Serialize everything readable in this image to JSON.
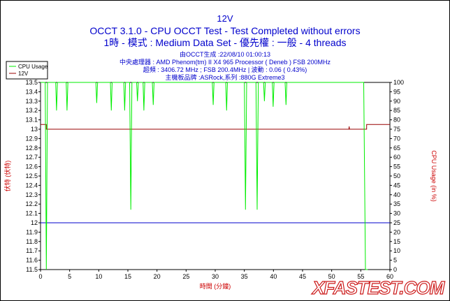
{
  "header": {
    "title": "12V",
    "subtitle": "OCCT 3.1.0 - CPU OCCT Test - Test Completed without errors",
    "config": "1時 - 模式 : Medium Data Set - 優先權 : 一般 - 4 threads"
  },
  "info": {
    "line1": "由OCCT生成 :22/08/10 01:00:13",
    "line2": "中央處理器 : AMD Phenom(tm) II X4 965 Processor ( Deneb ) FSB 200MHz",
    "line3": "超頻 : 3406.72 MHz ; FSB 200.4MHz | 波動 : 0.06 ( 0.43%)",
    "line4": "主機板品牌 :ASRock,系列 :880G Extreme3"
  },
  "legend": {
    "cpu": "CPU Usage",
    "v12": "12V"
  },
  "watermark": "XFASTEST.COM",
  "colors": {
    "cpu": "#00ee00",
    "v12": "#990000",
    "threshold": "#0000cc",
    "text": "#0000cc",
    "axis_label": "#cc0000"
  },
  "chart_data": {
    "type": "line",
    "xlabel": "時間 (分鐘)",
    "ylabel_left": "伏特 (伏特)",
    "ylabel_right": "CPU Usage (in %)",
    "xlim": [
      0,
      60
    ],
    "ylim_left": [
      11.5,
      13.5
    ],
    "ylim_right": [
      0,
      100
    ],
    "x_ticks": [
      0,
      5,
      10,
      15,
      20,
      25,
      30,
      35,
      40,
      45,
      50,
      55,
      60
    ],
    "y_left_ticks": [
      11.5,
      11.6,
      11.7,
      11.8,
      11.9,
      12,
      12.1,
      12.2,
      12.3,
      12.4,
      12.5,
      12.6,
      12.7,
      12.8,
      12.9,
      13,
      13.1,
      13.2,
      13.3,
      13.4,
      13.5
    ],
    "y_right_ticks": [
      0,
      5,
      10,
      15,
      20,
      25,
      30,
      35,
      40,
      45,
      50,
      55,
      60,
      65,
      70,
      75,
      80,
      85,
      90,
      95,
      100
    ],
    "threshold_12v": 12.0,
    "series": [
      {
        "name": "12V",
        "axis": "left",
        "points": [
          [
            0,
            13.05
          ],
          [
            1,
            13.05
          ],
          [
            1,
            13.0
          ],
          [
            52.95,
            13.0
          ],
          [
            53.0,
            13.03
          ],
          [
            53.05,
            13.0
          ],
          [
            56,
            13.0
          ],
          [
            56,
            13.05
          ],
          [
            60,
            13.05
          ]
        ]
      },
      {
        "name": "CPU Usage",
        "axis": "right",
        "points": [
          [
            0,
            100
          ],
          [
            0.8,
            100
          ],
          [
            1.0,
            0
          ],
          [
            1.2,
            100
          ],
          [
            2.6,
            100
          ],
          [
            2.75,
            85
          ],
          [
            2.9,
            100
          ],
          [
            4.4,
            100
          ],
          [
            4.55,
            85
          ],
          [
            4.7,
            100
          ],
          [
            9.5,
            100
          ],
          [
            9.65,
            89
          ],
          [
            9.8,
            100
          ],
          [
            12.0,
            100
          ],
          [
            12.15,
            85
          ],
          [
            12.3,
            100
          ],
          [
            14.3,
            100
          ],
          [
            14.45,
            85
          ],
          [
            14.6,
            100
          ],
          [
            15.3,
            100
          ],
          [
            15.5,
            32
          ],
          [
            15.7,
            100
          ],
          [
            16.5,
            100
          ],
          [
            16.65,
            90
          ],
          [
            16.8,
            100
          ],
          [
            17.6,
            100
          ],
          [
            17.75,
            85
          ],
          [
            17.9,
            100
          ],
          [
            19.2,
            100
          ],
          [
            19.35,
            88
          ],
          [
            19.5,
            100
          ],
          [
            29.5,
            100
          ],
          [
            29.65,
            88
          ],
          [
            29.8,
            100
          ],
          [
            31.8,
            100
          ],
          [
            31.95,
            85
          ],
          [
            32.1,
            100
          ],
          [
            35.0,
            100
          ],
          [
            35.2,
            32
          ],
          [
            35.4,
            100
          ],
          [
            37.0,
            100
          ],
          [
            37.2,
            32
          ],
          [
            37.4,
            100
          ],
          [
            38.3,
            100
          ],
          [
            38.45,
            90
          ],
          [
            38.6,
            100
          ],
          [
            39.8,
            100
          ],
          [
            39.95,
            87
          ],
          [
            40.1,
            100
          ],
          [
            42.0,
            100
          ],
          [
            42.15,
            88
          ],
          [
            42.3,
            100
          ],
          [
            55.5,
            100
          ],
          [
            55.8,
            0
          ],
          [
            56.1,
            0
          ],
          [
            56.2,
            0
          ]
        ]
      }
    ]
  }
}
